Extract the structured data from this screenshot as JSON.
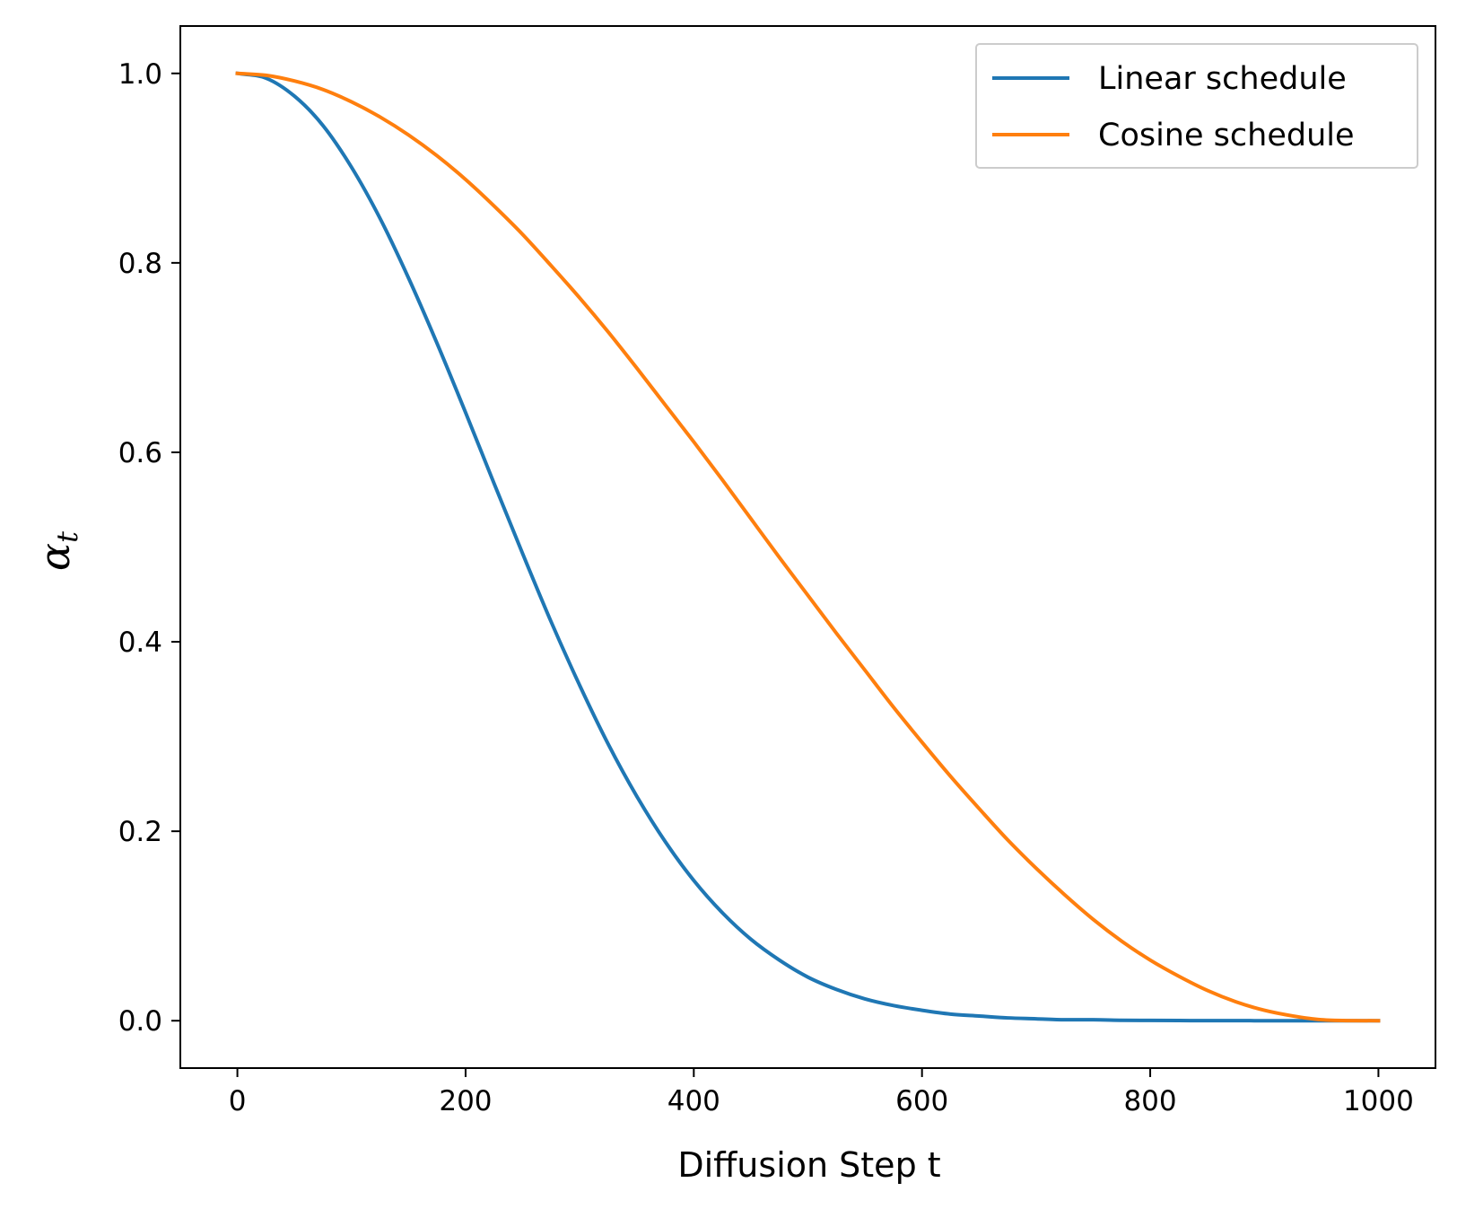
{
  "chart_data": {
    "type": "line",
    "title": "",
    "xlabel": "Diffusion Step t",
    "ylabel": {
      "base": "α",
      "subscript": "t"
    },
    "xlim": [
      -50,
      1050
    ],
    "ylim": [
      -0.05,
      1.05
    ],
    "xticks": [
      0,
      200,
      400,
      600,
      800,
      1000
    ],
    "xtick_labels": [
      "0",
      "200",
      "400",
      "600",
      "800",
      "1000"
    ],
    "yticks": [
      0.0,
      0.2,
      0.4,
      0.6,
      0.8,
      1.0
    ],
    "ytick_labels": [
      "0.0",
      "0.2",
      "0.4",
      "0.6",
      "0.8",
      "1.0"
    ],
    "grid": false,
    "legend_position": "top-right",
    "series": [
      {
        "name": "Linear schedule",
        "color": "#1f77b4",
        "x": [
          0,
          25,
          50,
          75,
          100,
          125,
          150,
          175,
          200,
          225,
          250,
          275,
          300,
          325,
          350,
          375,
          400,
          425,
          450,
          475,
          500,
          525,
          550,
          575,
          600,
          625,
          650,
          675,
          700,
          725,
          750,
          775,
          800,
          825,
          850,
          875,
          900,
          925,
          950,
          975,
          1000
        ],
        "y": [
          1.0,
          0.995,
          0.976,
          0.945,
          0.901,
          0.847,
          0.784,
          0.715,
          0.642,
          0.567,
          0.493,
          0.421,
          0.354,
          0.292,
          0.237,
          0.189,
          0.148,
          0.114,
          0.086,
          0.064,
          0.046,
          0.033,
          0.023,
          0.016,
          0.011,
          0.007,
          0.005,
          0.003,
          0.002,
          0.001,
          0.001,
          0.0005,
          0.0003,
          0.0002,
          0.0001,
          0.0001,
          0.0,
          0.0,
          0.0,
          0.0,
          0.0
        ]
      },
      {
        "name": "Cosine schedule",
        "color": "#ff7f0e",
        "x": [
          0,
          25,
          50,
          75,
          100,
          125,
          150,
          175,
          200,
          225,
          250,
          275,
          300,
          325,
          350,
          375,
          400,
          425,
          450,
          475,
          500,
          525,
          550,
          575,
          600,
          625,
          650,
          675,
          700,
          725,
          750,
          775,
          800,
          825,
          850,
          875,
          900,
          925,
          950,
          975,
          1000
        ],
        "y": [
          1.0,
          0.998,
          0.992,
          0.983,
          0.97,
          0.954,
          0.935,
          0.913,
          0.888,
          0.86,
          0.83,
          0.797,
          0.763,
          0.727,
          0.689,
          0.65,
          0.611,
          0.571,
          0.53,
          0.489,
          0.449,
          0.409,
          0.37,
          0.331,
          0.294,
          0.258,
          0.224,
          0.191,
          0.161,
          0.133,
          0.107,
          0.084,
          0.064,
          0.047,
          0.032,
          0.02,
          0.011,
          0.005,
          0.001,
          0.0001,
          0.0
        ]
      }
    ]
  }
}
